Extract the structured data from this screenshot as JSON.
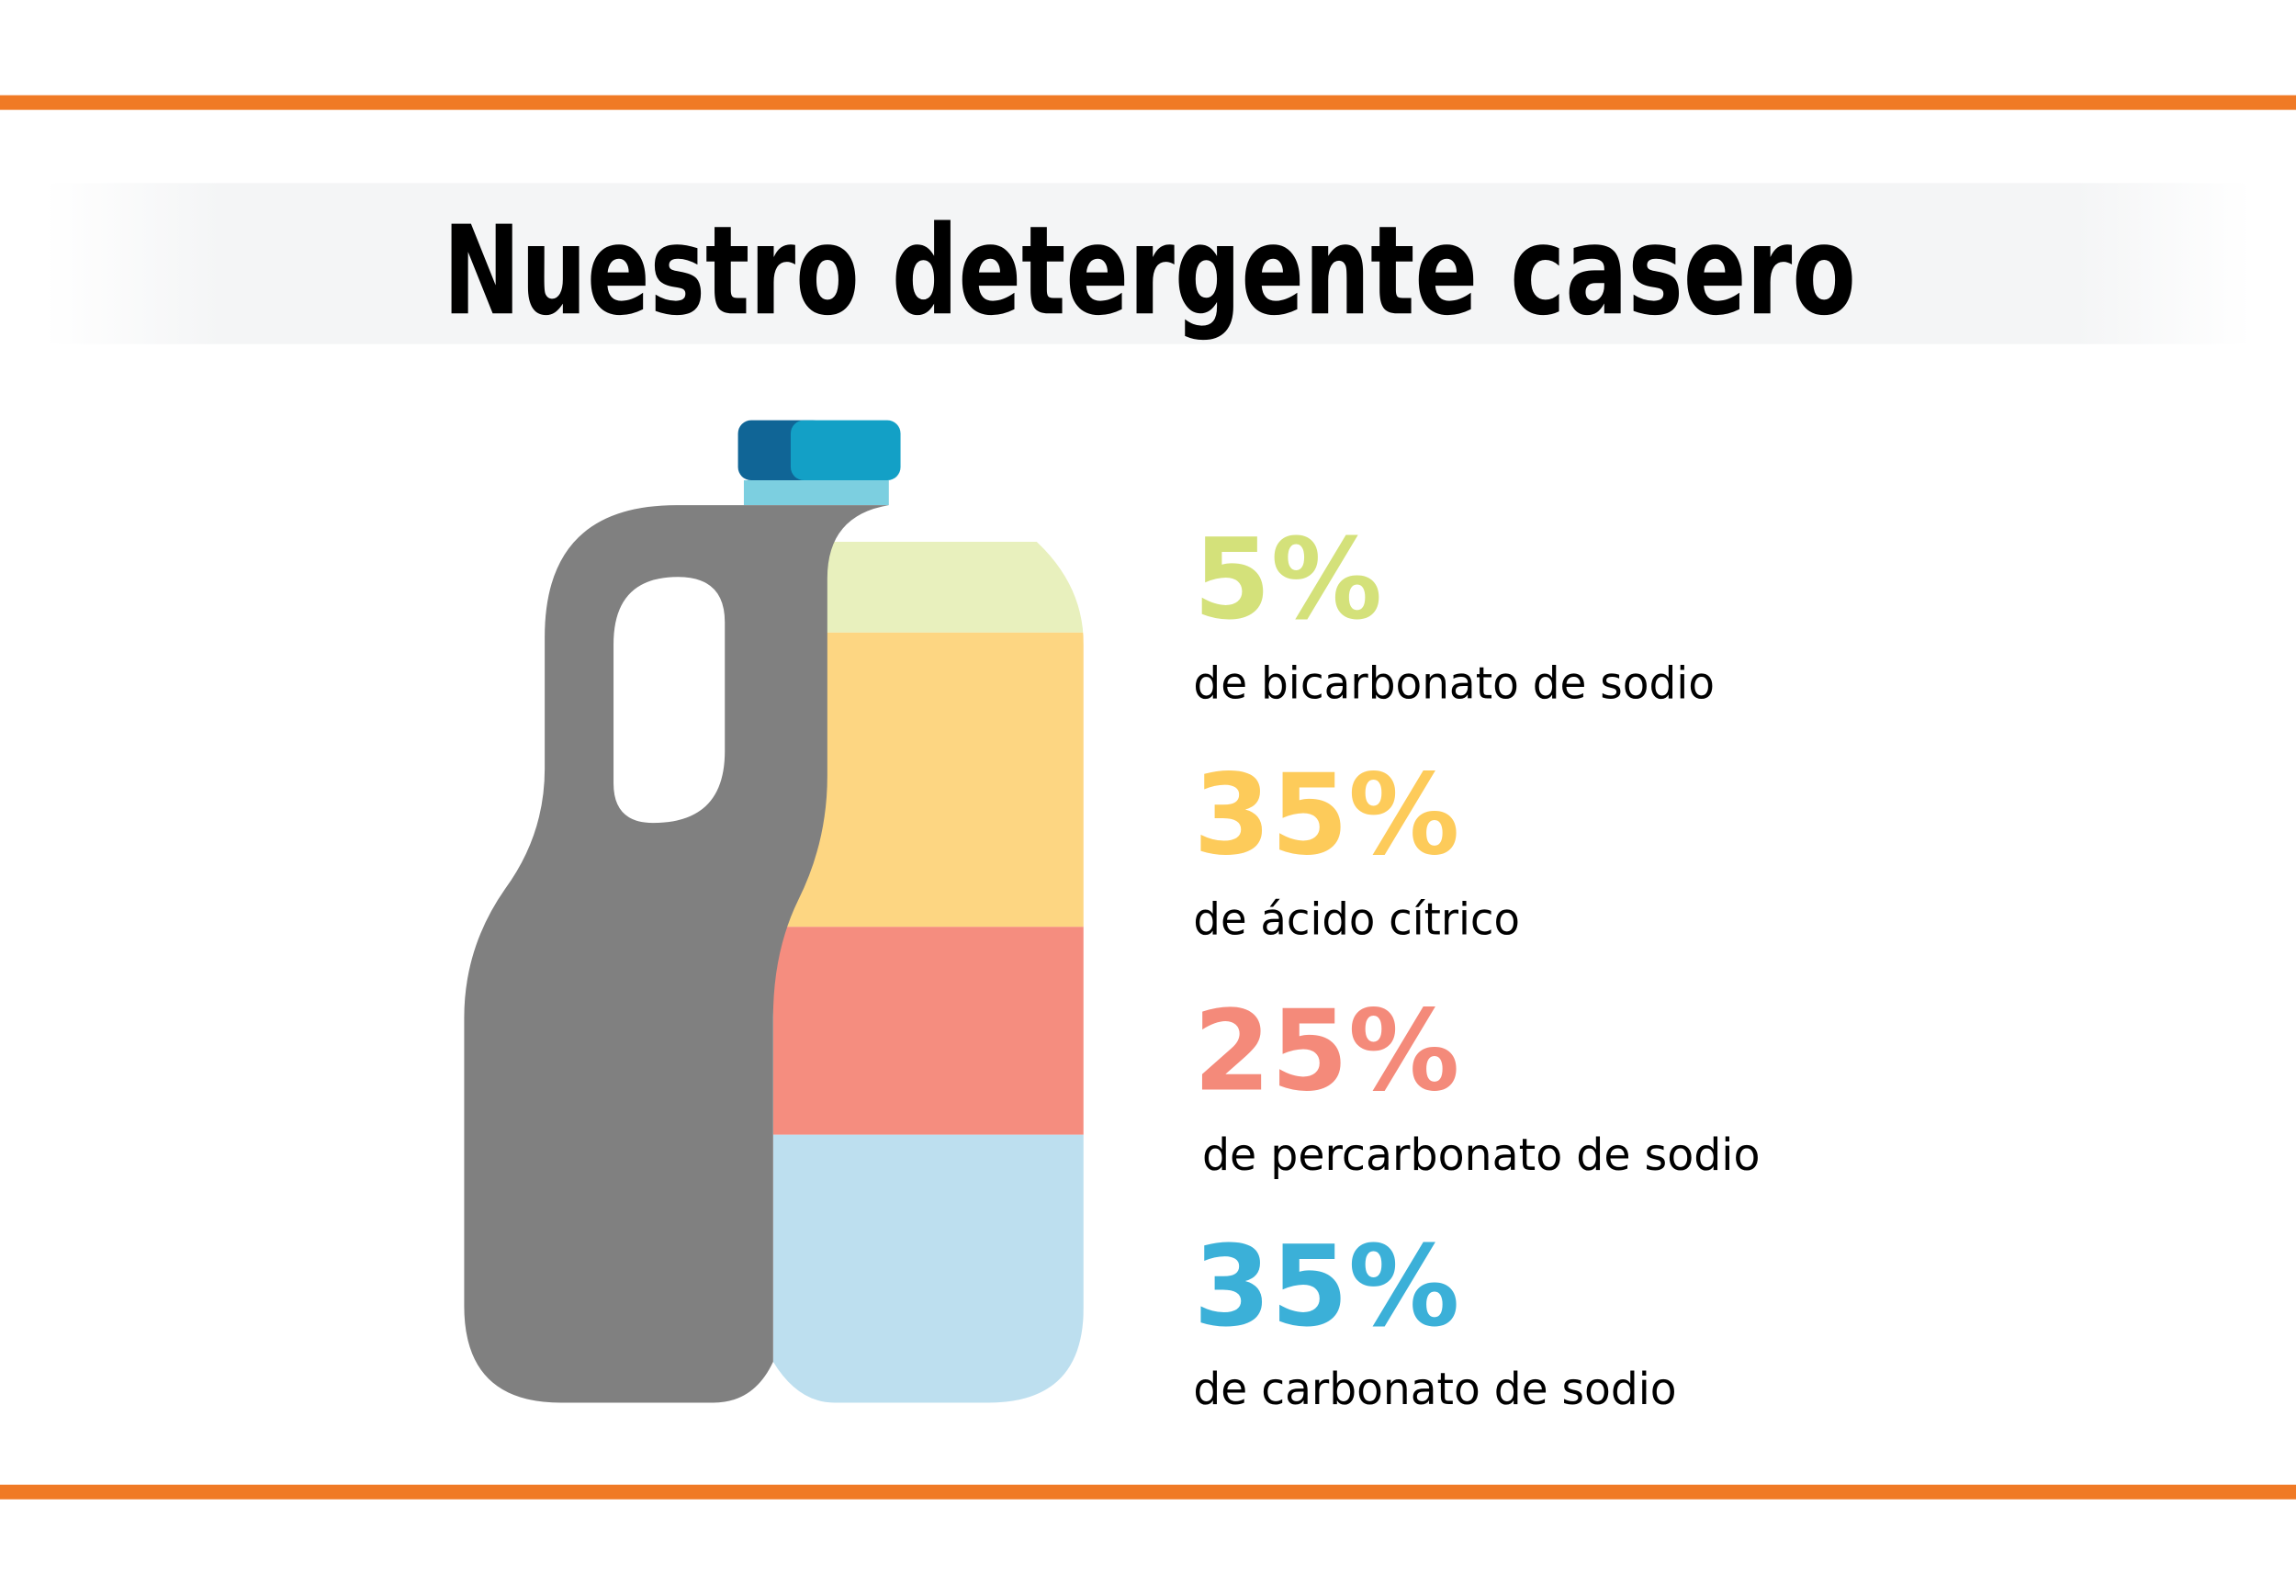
{
  "title": "Nuestro detergente casero",
  "colors": {
    "accent_line": "#f07a25",
    "bottle": "#808080",
    "cap_dark": "#106596",
    "cap_light": "#13a0c6",
    "neck": "#7ccfe0"
  },
  "chart_data": {
    "type": "bar",
    "stacked": true,
    "title": "Nuestro detergente casero",
    "categories": [
      "de bicarbonato de sodio",
      "de ácido cítrico",
      "de percarbonato de sodio",
      "de carbonato de sodio"
    ],
    "values": [
      5,
      35,
      25,
      35
    ],
    "value_labels": [
      "5%",
      "35%",
      "25%",
      "35%"
    ],
    "unit": "%",
    "fill_colors": [
      "#e8f0bd",
      "#fdd682",
      "#f58d7f",
      "#bddfef"
    ],
    "label_colors": [
      "#d4e17a",
      "#fdcb5a",
      "#f48a7a",
      "#3bb0d8"
    ]
  }
}
